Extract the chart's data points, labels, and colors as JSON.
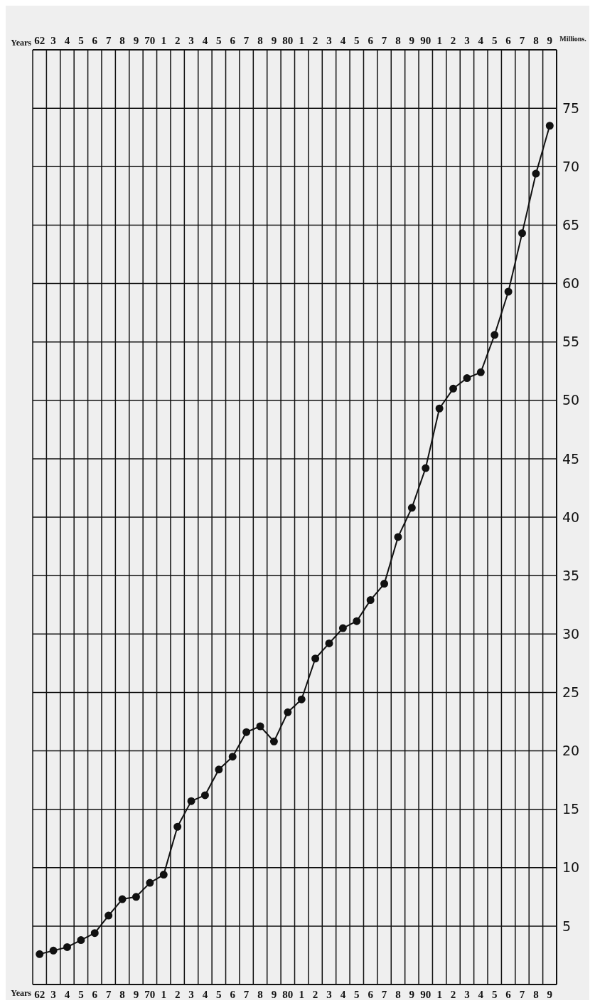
{
  "chart_data": {
    "type": "line",
    "xlabel": "Years",
    "ylabel": "Millions.",
    "categories": [
      "62",
      "3",
      "4",
      "5",
      "6",
      "7",
      "8",
      "9",
      "70",
      "1",
      "2",
      "3",
      "4",
      "5",
      "6",
      "7",
      "8",
      "9",
      "80",
      "1",
      "2",
      "3",
      "4",
      "5",
      "6",
      "7",
      "8",
      "9",
      "90",
      "1",
      "2",
      "3",
      "4",
      "5",
      "6",
      "7",
      "8",
      "9"
    ],
    "series": [
      {
        "color": "#111111",
        "values": [
          2.6,
          2.9,
          3.2,
          3.8,
          4.4,
          5.9,
          7.3,
          7.5,
          8.7,
          9.4,
          13.5,
          15.7,
          16.2,
          18.4,
          19.5,
          21.6,
          22.1,
          20.8,
          23.3,
          24.4,
          27.9,
          29.2,
          30.5,
          31.1,
          32.9,
          34.3,
          38.3,
          40.8,
          44.2,
          49.3,
          51.0,
          51.9,
          52.4,
          55.6,
          59.3,
          64.3,
          69.4,
          73.5
        ]
      }
    ],
    "ylim": [
      0,
      80
    ],
    "yticks": [
      5,
      10,
      15,
      20,
      25,
      30,
      35,
      40,
      45,
      50,
      55,
      60,
      65,
      70,
      75
    ],
    "grid": true,
    "marker": "circle",
    "line_style": "solid"
  }
}
